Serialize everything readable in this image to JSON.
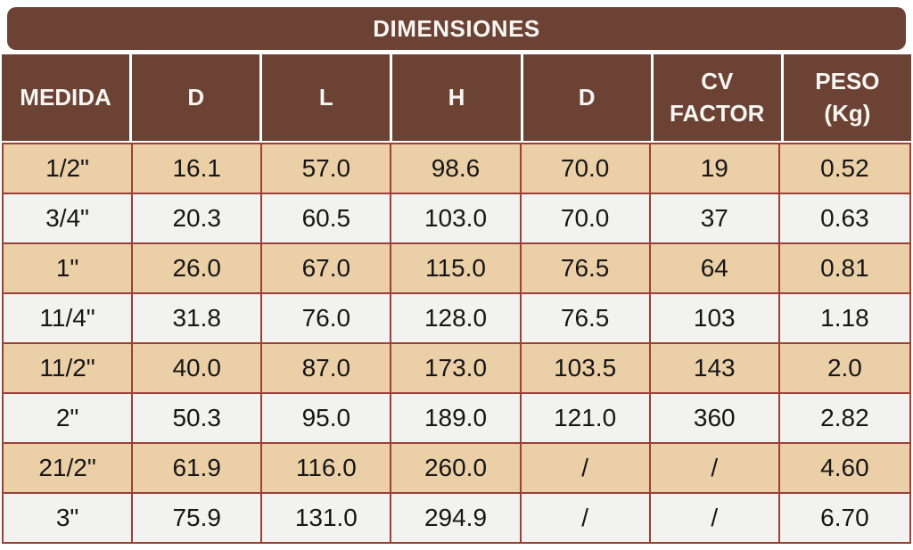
{
  "title": "DIMENSIONES",
  "table": {
    "columns": [
      "MEDIDA",
      "D",
      "L",
      "H",
      "D",
      "CV FACTOR",
      "PESO (Kg)"
    ],
    "rows": [
      [
        "1/2\"",
        "16.1",
        "57.0",
        "98.6",
        "70.0",
        "19",
        "0.52"
      ],
      [
        "3/4\"",
        "20.3",
        "60.5",
        "103.0",
        "70.0",
        "37",
        "0.63"
      ],
      [
        "1\"",
        "26.0",
        "67.0",
        "115.0",
        "76.5",
        "64",
        "0.81"
      ],
      [
        "11/4\"",
        "31.8",
        "76.0",
        "128.0",
        "76.5",
        "103",
        "1.18"
      ],
      [
        "11/2\"",
        "40.0",
        "87.0",
        "173.0",
        "103.5",
        "143",
        "2.0"
      ],
      [
        "2\"",
        "50.3",
        "95.0",
        "189.0",
        "121.0",
        "360",
        "2.82"
      ],
      [
        "21/2\"",
        "61.9",
        "116.0",
        "260.0",
        "/",
        "/",
        "4.60"
      ],
      [
        "3\"",
        "75.9",
        "131.0",
        "294.9",
        "/",
        "/",
        "6.70"
      ]
    ]
  },
  "colors": {
    "header_brown": "#6B4233",
    "row_tan": "#EBCFA7",
    "row_light": "#F2F2F0",
    "border_maroon": "#9A4038",
    "header_text": "#F8F5F2",
    "data_text": "#161616"
  }
}
